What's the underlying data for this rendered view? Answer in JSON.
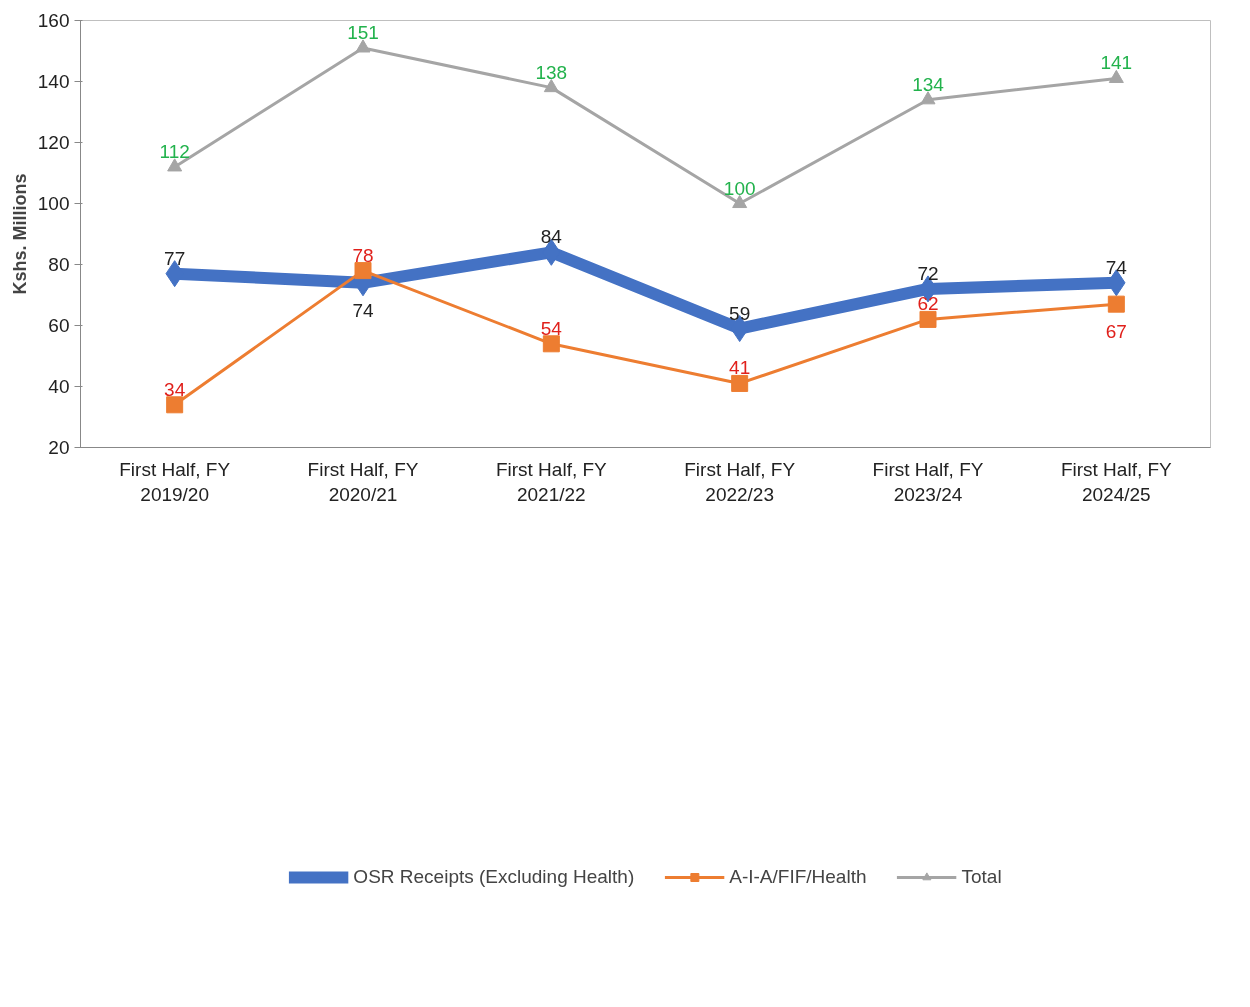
{
  "chart_data": {
    "type": "line",
    "ylabel": "Kshs. Millions",
    "categories": [
      "First Half, FY 2019/20",
      "First Half, FY 2020/21",
      "First Half, FY 2021/22",
      "First Half, FY 2022/23",
      "First Half, FY 2023/24",
      "First Half, FY 2024/25"
    ],
    "series": [
      {
        "name": "OSR Receipts (Excluding Health)",
        "color": "#4472c4",
        "marker": "diamond",
        "values": [
          77,
          74,
          84,
          59,
          72,
          74
        ]
      },
      {
        "name": "A-I-A/FIF/Health",
        "color": "#ed7d31",
        "marker": "square",
        "values": [
          34,
          78,
          54,
          41,
          62,
          67
        ]
      },
      {
        "name": "Total",
        "color": "#a5a5a5",
        "marker": "triangle",
        "values": [
          112,
          151,
          138,
          100,
          134,
          141
        ]
      }
    ],
    "ylim": [
      20,
      160
    ],
    "yticks": [
      20,
      40,
      60,
      80,
      100,
      120,
      140,
      160
    ],
    "grid": false,
    "legend": "bottom",
    "data_labels": true
  }
}
